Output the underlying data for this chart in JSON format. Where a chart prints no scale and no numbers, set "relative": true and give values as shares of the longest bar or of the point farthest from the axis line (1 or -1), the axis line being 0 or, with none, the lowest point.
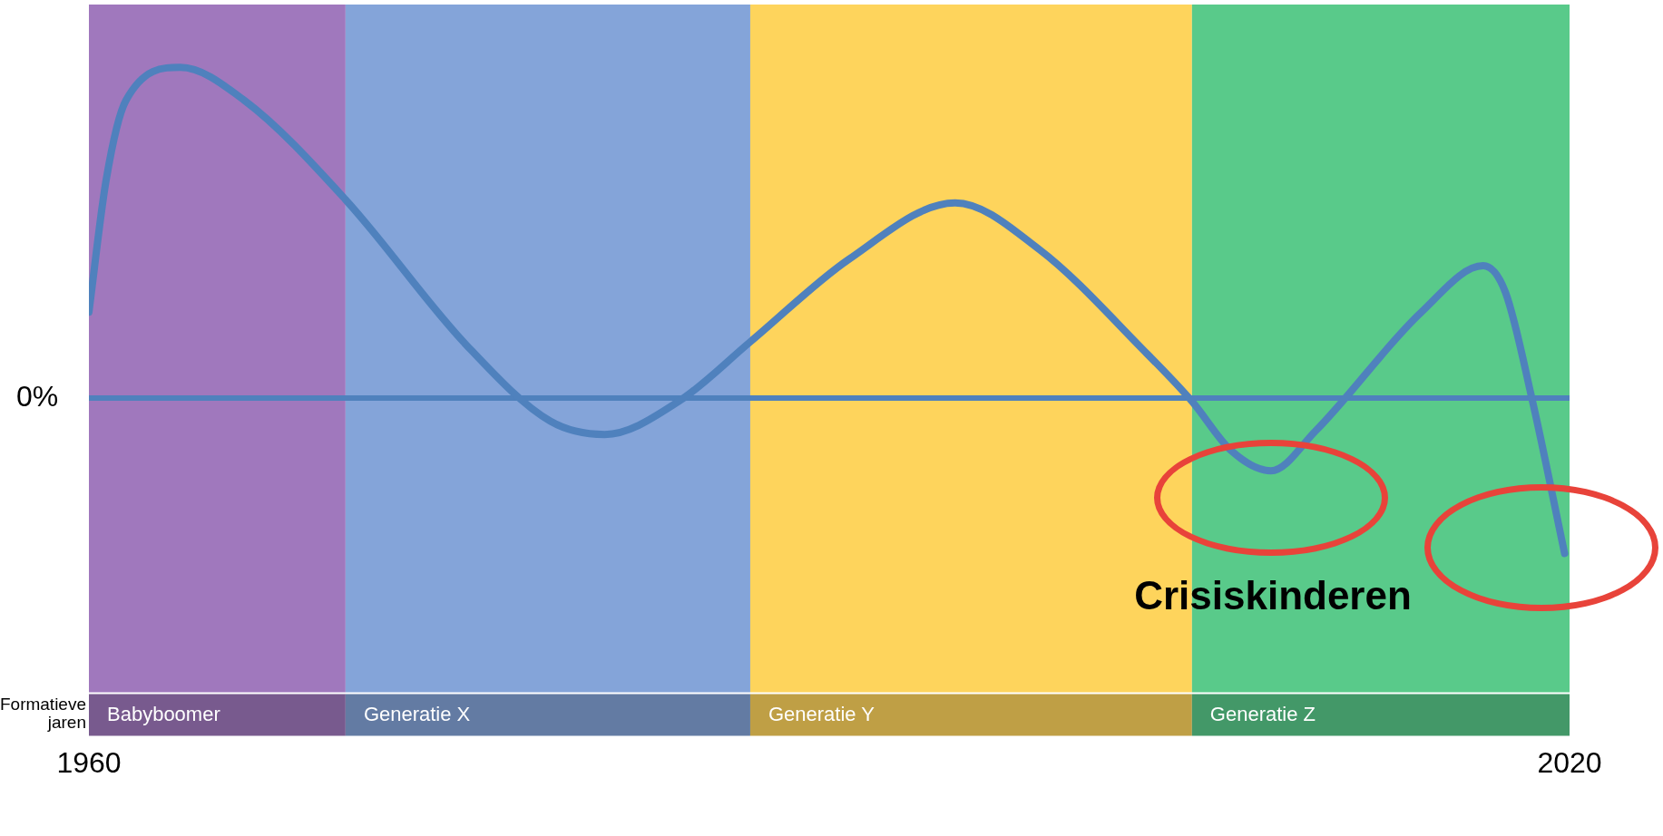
{
  "chart_data": {
    "type": "line",
    "relative": true,
    "xlim": [
      1960,
      2020
    ],
    "xticks": [
      1960,
      2020
    ],
    "series": [
      {
        "color": "#4f81bd",
        "x": [
          1960,
          1960.7,
          1961.5,
          1963.7,
          1966.3,
          1970.4,
          1975.3,
          1978.7,
          1980.9,
          1983.9,
          1986.8,
          1990.8,
          1995.1,
          1998.5,
          2002.8,
          2004.7,
          2006.3,
          2007.9,
          2009.7,
          2014.0,
          2016.5,
          2017.4,
          2018.5,
          2019.8
        ],
        "values": [
          0.26,
          0.66,
          0.9,
          1,
          0.9,
          0.6,
          0.16,
          -0.07,
          -0.11,
          -0.01,
          0.17,
          0.42,
          0.59,
          0.45,
          0.14,
          -0.01,
          -0.16,
          -0.22,
          -0.1,
          0.26,
          0.4,
          0.32,
          -0.01,
          -0.47
        ]
      }
    ],
    "ref_lines": [
      {
        "axis": "y",
        "value": 0,
        "label": "0%",
        "color": "#4f81bd"
      }
    ],
    "bands": [
      {
        "axis": "x",
        "from": 1960,
        "to": 1970.4,
        "label": "Babyboomer",
        "color": "#a078bd"
      },
      {
        "axis": "x",
        "from": 1970.4,
        "to": 1986.8,
        "label": "Generatie X",
        "color": "#84a4d9"
      },
      {
        "axis": "x",
        "from": 1986.8,
        "to": 2004.7,
        "label": "Generatie Y",
        "color": "#fed45c"
      },
      {
        "axis": "x",
        "from": 2004.7,
        "to": 2020,
        "label": "Generatie Z",
        "color": "#59ca8a"
      }
    ],
    "annotations": [
      "Formatieve jaren",
      "Crisiskinderen"
    ],
    "legend": false,
    "grid": false
  }
}
